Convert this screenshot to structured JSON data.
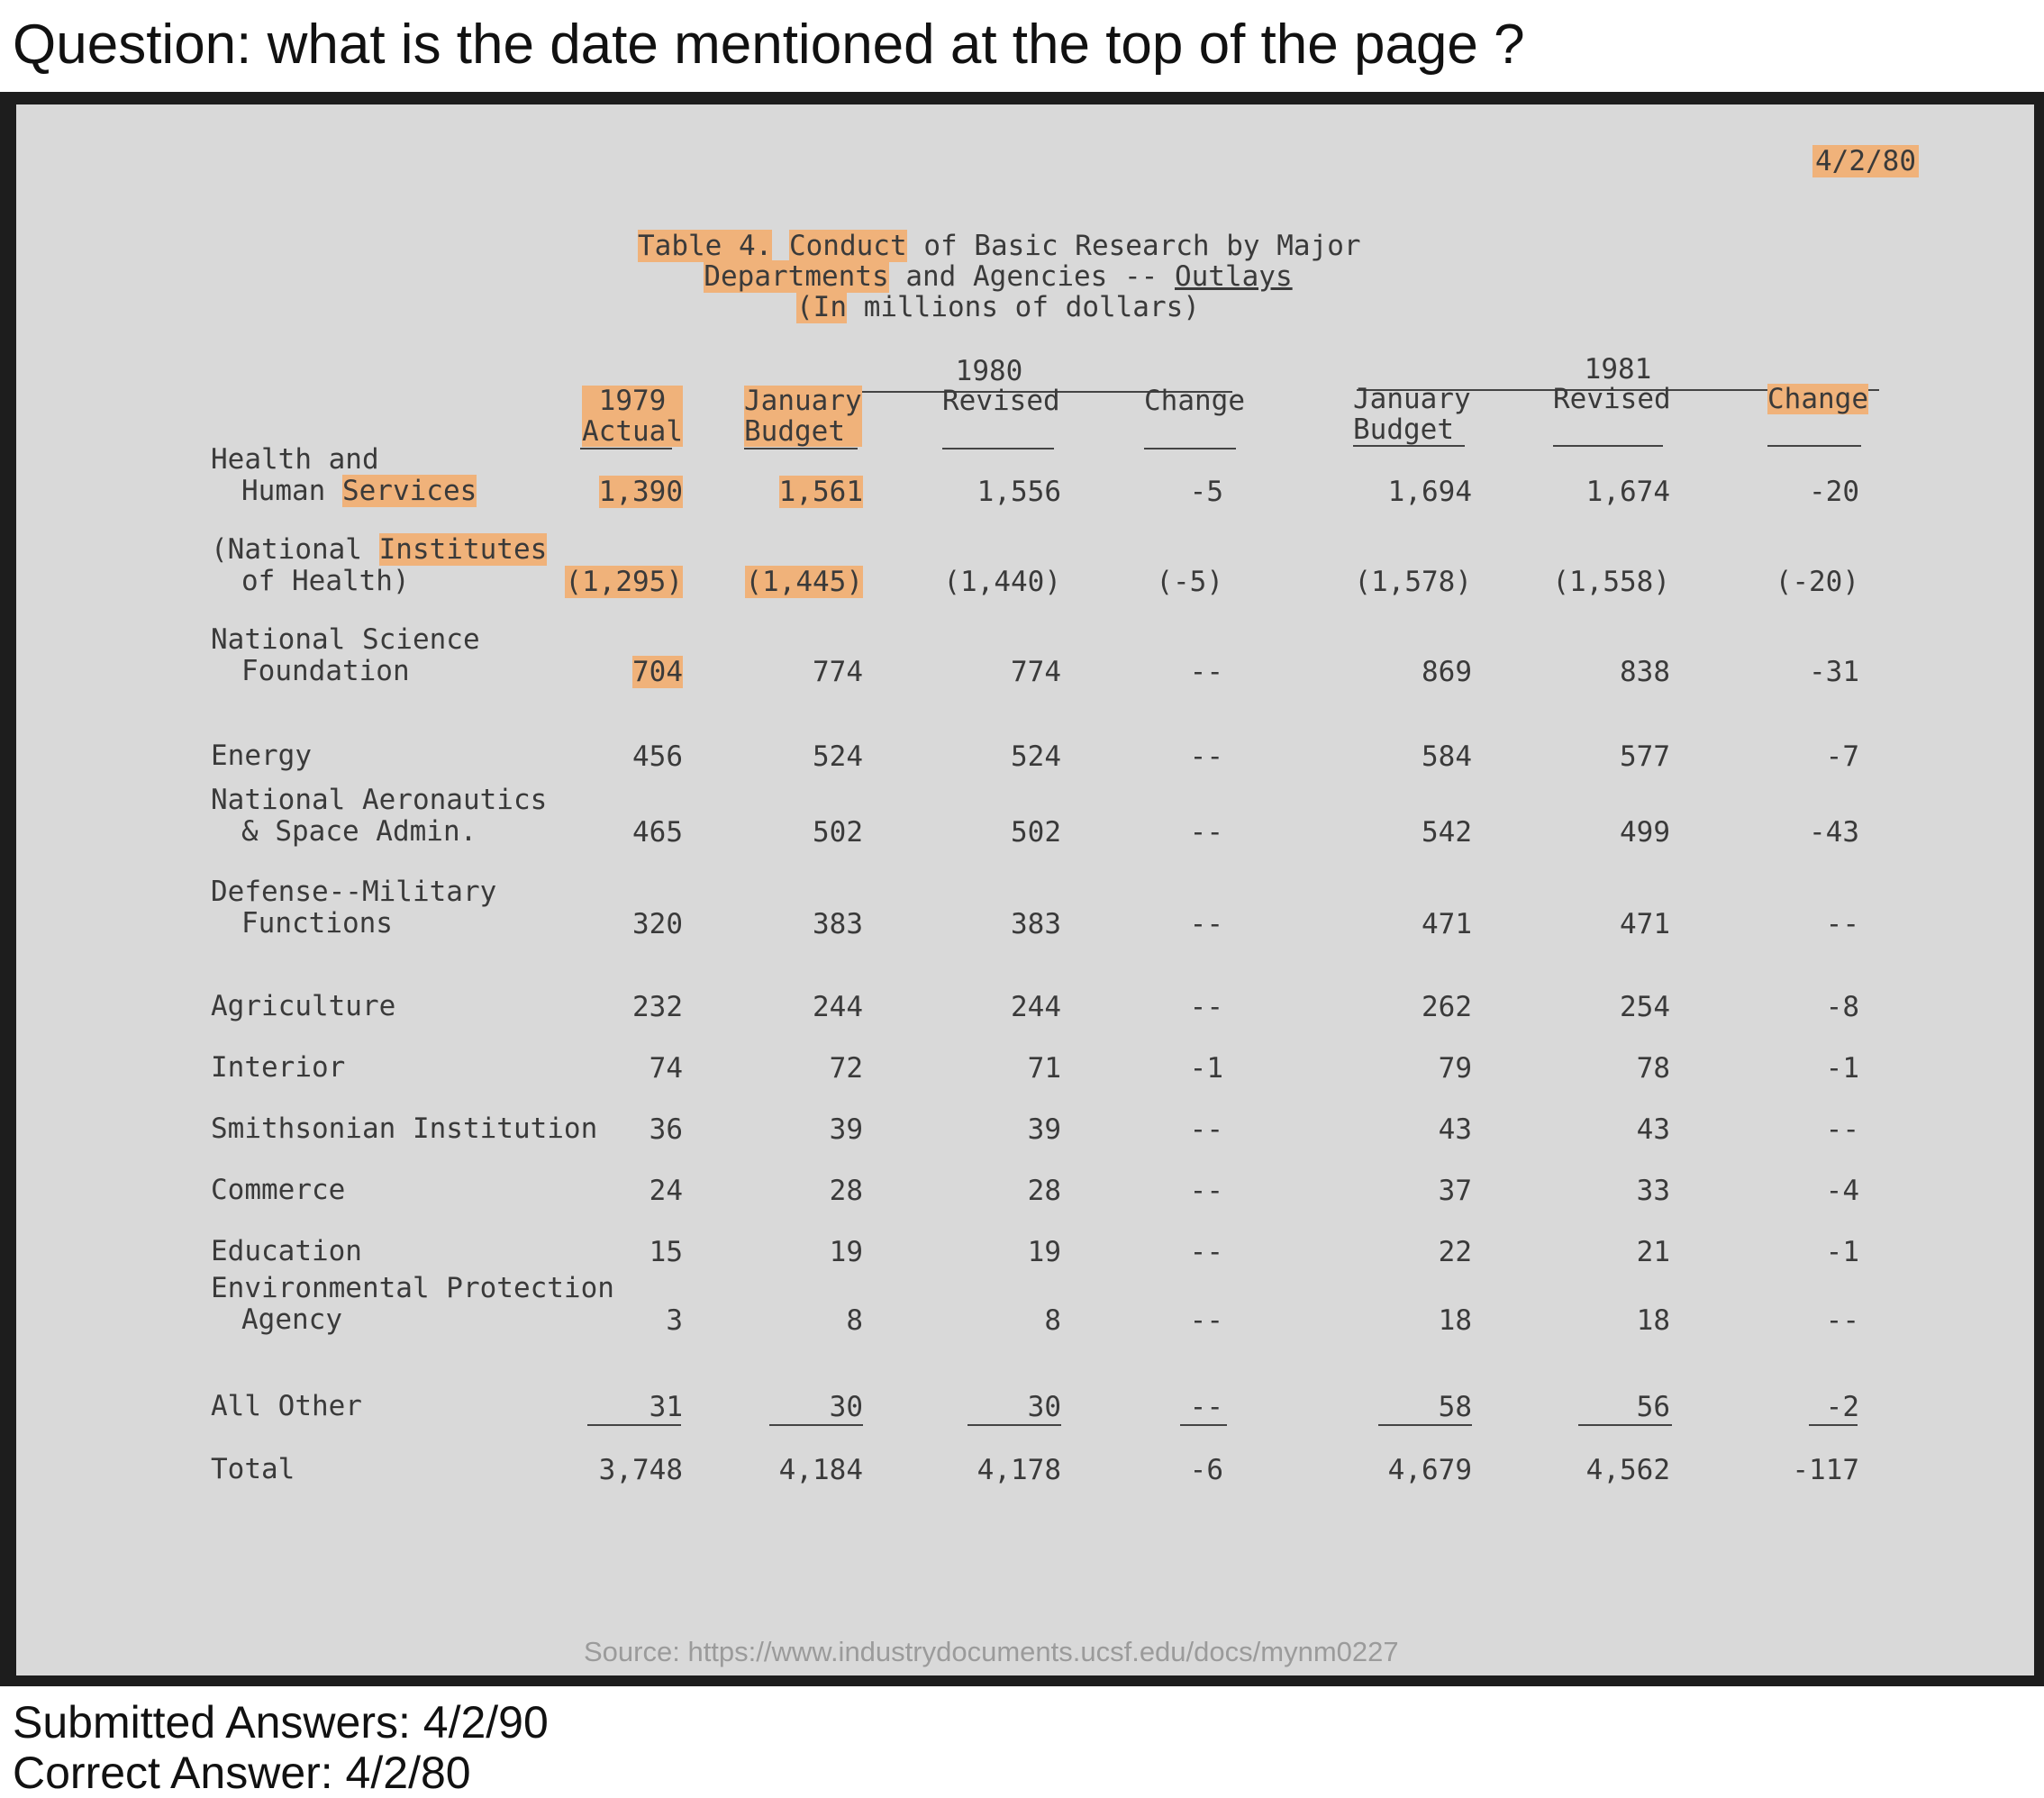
{
  "question": "Question: what is the date mentioned at the top of the page ?",
  "document": {
    "date": "4/2/80",
    "caption": {
      "line1_a": "Table 4.",
      "line1_b": "Conduct",
      "line1_c": "of Basic Research by Major",
      "line2_a": "Departments",
      "line2_b": "and Agencies --",
      "line2_c": "Outlays",
      "line3_a": "(In",
      "line3_b": "millions of dollars)"
    },
    "groups": {
      "y1980": "1980",
      "y1981": "1981"
    },
    "headers": {
      "actual_1979": [
        "1979",
        "Actual"
      ],
      "jan_budget_1980": [
        "January",
        "Budget"
      ],
      "revised_1980": "Revised",
      "change_1980": "Change",
      "jan_budget_1981": [
        "January",
        "Budget"
      ],
      "revised_1981": "Revised",
      "change_1981": "Change"
    },
    "rows": [
      {
        "label": [
          "Health and",
          "Human Services"
        ],
        "values": [
          "1,390",
          "1,561",
          "1,556",
          "-5",
          "1,694",
          "1,674",
          "-20"
        ]
      },
      {
        "label": [
          "(National Institutes",
          "of Health)"
        ],
        "values": [
          "(1,295)",
          "(1,445)",
          "(1,440)",
          "(-5)",
          "(1,578)",
          "(1,558)",
          "(-20)"
        ]
      },
      {
        "label": [
          "National Science",
          "Foundation"
        ],
        "values": [
          "704",
          "774",
          "774",
          "--",
          "869",
          "838",
          "-31"
        ]
      },
      {
        "label": [
          "Energy"
        ],
        "values": [
          "456",
          "524",
          "524",
          "--",
          "584",
          "577",
          "-7"
        ]
      },
      {
        "label": [
          "National Aeronautics",
          "& Space Admin."
        ],
        "values": [
          "465",
          "502",
          "502",
          "--",
          "542",
          "499",
          "-43"
        ]
      },
      {
        "label": [
          "Defense--Military",
          "Functions"
        ],
        "values": [
          "320",
          "383",
          "383",
          "--",
          "471",
          "471",
          "--"
        ]
      },
      {
        "label": [
          "Agriculture"
        ],
        "values": [
          "232",
          "244",
          "244",
          "--",
          "262",
          "254",
          "-8"
        ]
      },
      {
        "label": [
          "Interior"
        ],
        "values": [
          "74",
          "72",
          "71",
          "-1",
          "79",
          "78",
          "-1"
        ]
      },
      {
        "label": [
          "Smithsonian Institution"
        ],
        "values": [
          "36",
          "39",
          "39",
          "--",
          "43",
          "43",
          "--"
        ]
      },
      {
        "label": [
          "Commerce"
        ],
        "values": [
          "24",
          "28",
          "28",
          "--",
          "37",
          "33",
          "-4"
        ]
      },
      {
        "label": [
          "Education"
        ],
        "values": [
          "15",
          "19",
          "19",
          "--",
          "22",
          "21",
          "-1"
        ]
      },
      {
        "label": [
          "Environmental Protection",
          "Agency"
        ],
        "values": [
          "3",
          "8",
          "8",
          "--",
          "18",
          "18",
          "--"
        ]
      },
      {
        "label": [
          "All Other"
        ],
        "values": [
          "31",
          "30",
          "30",
          "--",
          "58",
          "56",
          "-2"
        ]
      },
      {
        "label": [
          "Total"
        ],
        "values": [
          "3,748",
          "4,184",
          "4,178",
          "-6",
          "4,679",
          "4,562",
          "-117"
        ]
      }
    ],
    "source": "Source: https://www.industrydocuments.ucsf.edu/docs/mynm0227"
  },
  "answers": {
    "submitted": "Submitted Answers: 4/2/90",
    "correct": "Correct Answer: 4/2/80"
  },
  "colors": {
    "highlight": "#f0b27a",
    "paper": "#d9d9d9",
    "frame": "#1d1d1d"
  }
}
